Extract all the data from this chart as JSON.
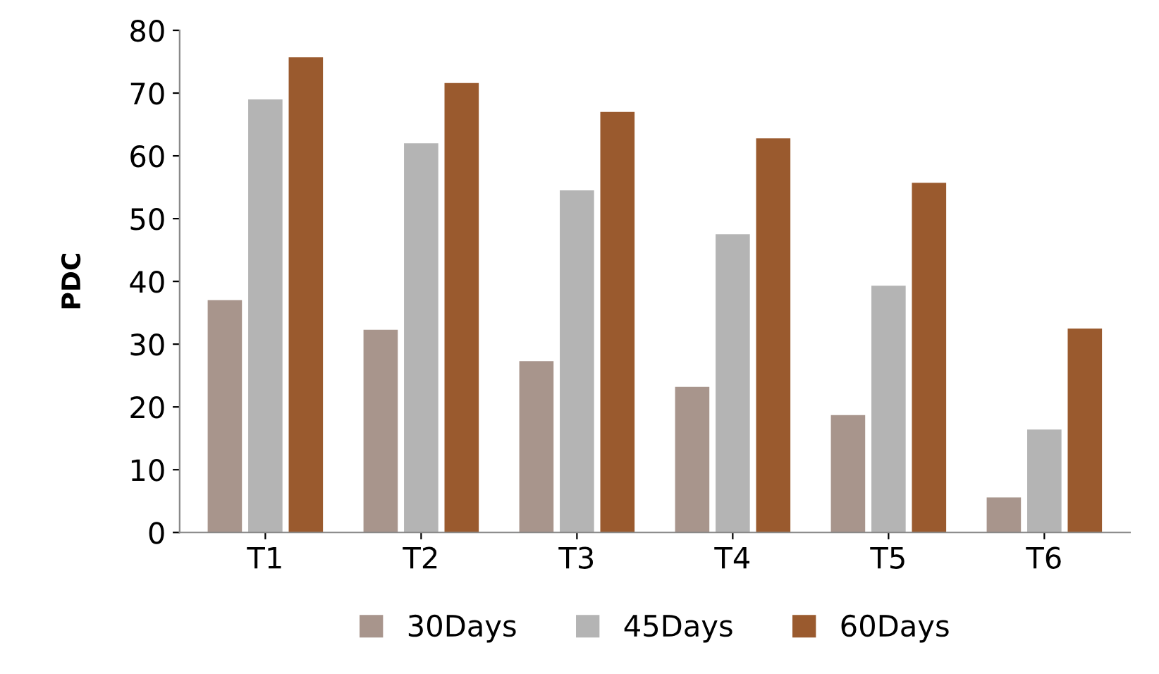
{
  "chart_data": {
    "type": "bar",
    "ylabel": "PDC",
    "categories": [
      "T1",
      "T2",
      "T3",
      "T4",
      "T5",
      "T6"
    ],
    "series": [
      {
        "name": "30Days",
        "color": "#a8958c",
        "values": [
          37,
          32.3,
          27.3,
          23.2,
          18.7,
          5.6
        ]
      },
      {
        "name": "45Days",
        "color": "#b4b4b4",
        "values": [
          69,
          62,
          54.5,
          47.5,
          39.3,
          16.4
        ]
      },
      {
        "name": "60Days",
        "color": "#9a5a2e",
        "values": [
          75.7,
          71.6,
          67,
          62.8,
          55.7,
          32.5
        ]
      }
    ],
    "ylim": [
      0,
      80
    ],
    "yticks": [
      0,
      10,
      20,
      30,
      40,
      50,
      60,
      70,
      80
    ],
    "grid": false,
    "legend": "bottom"
  }
}
